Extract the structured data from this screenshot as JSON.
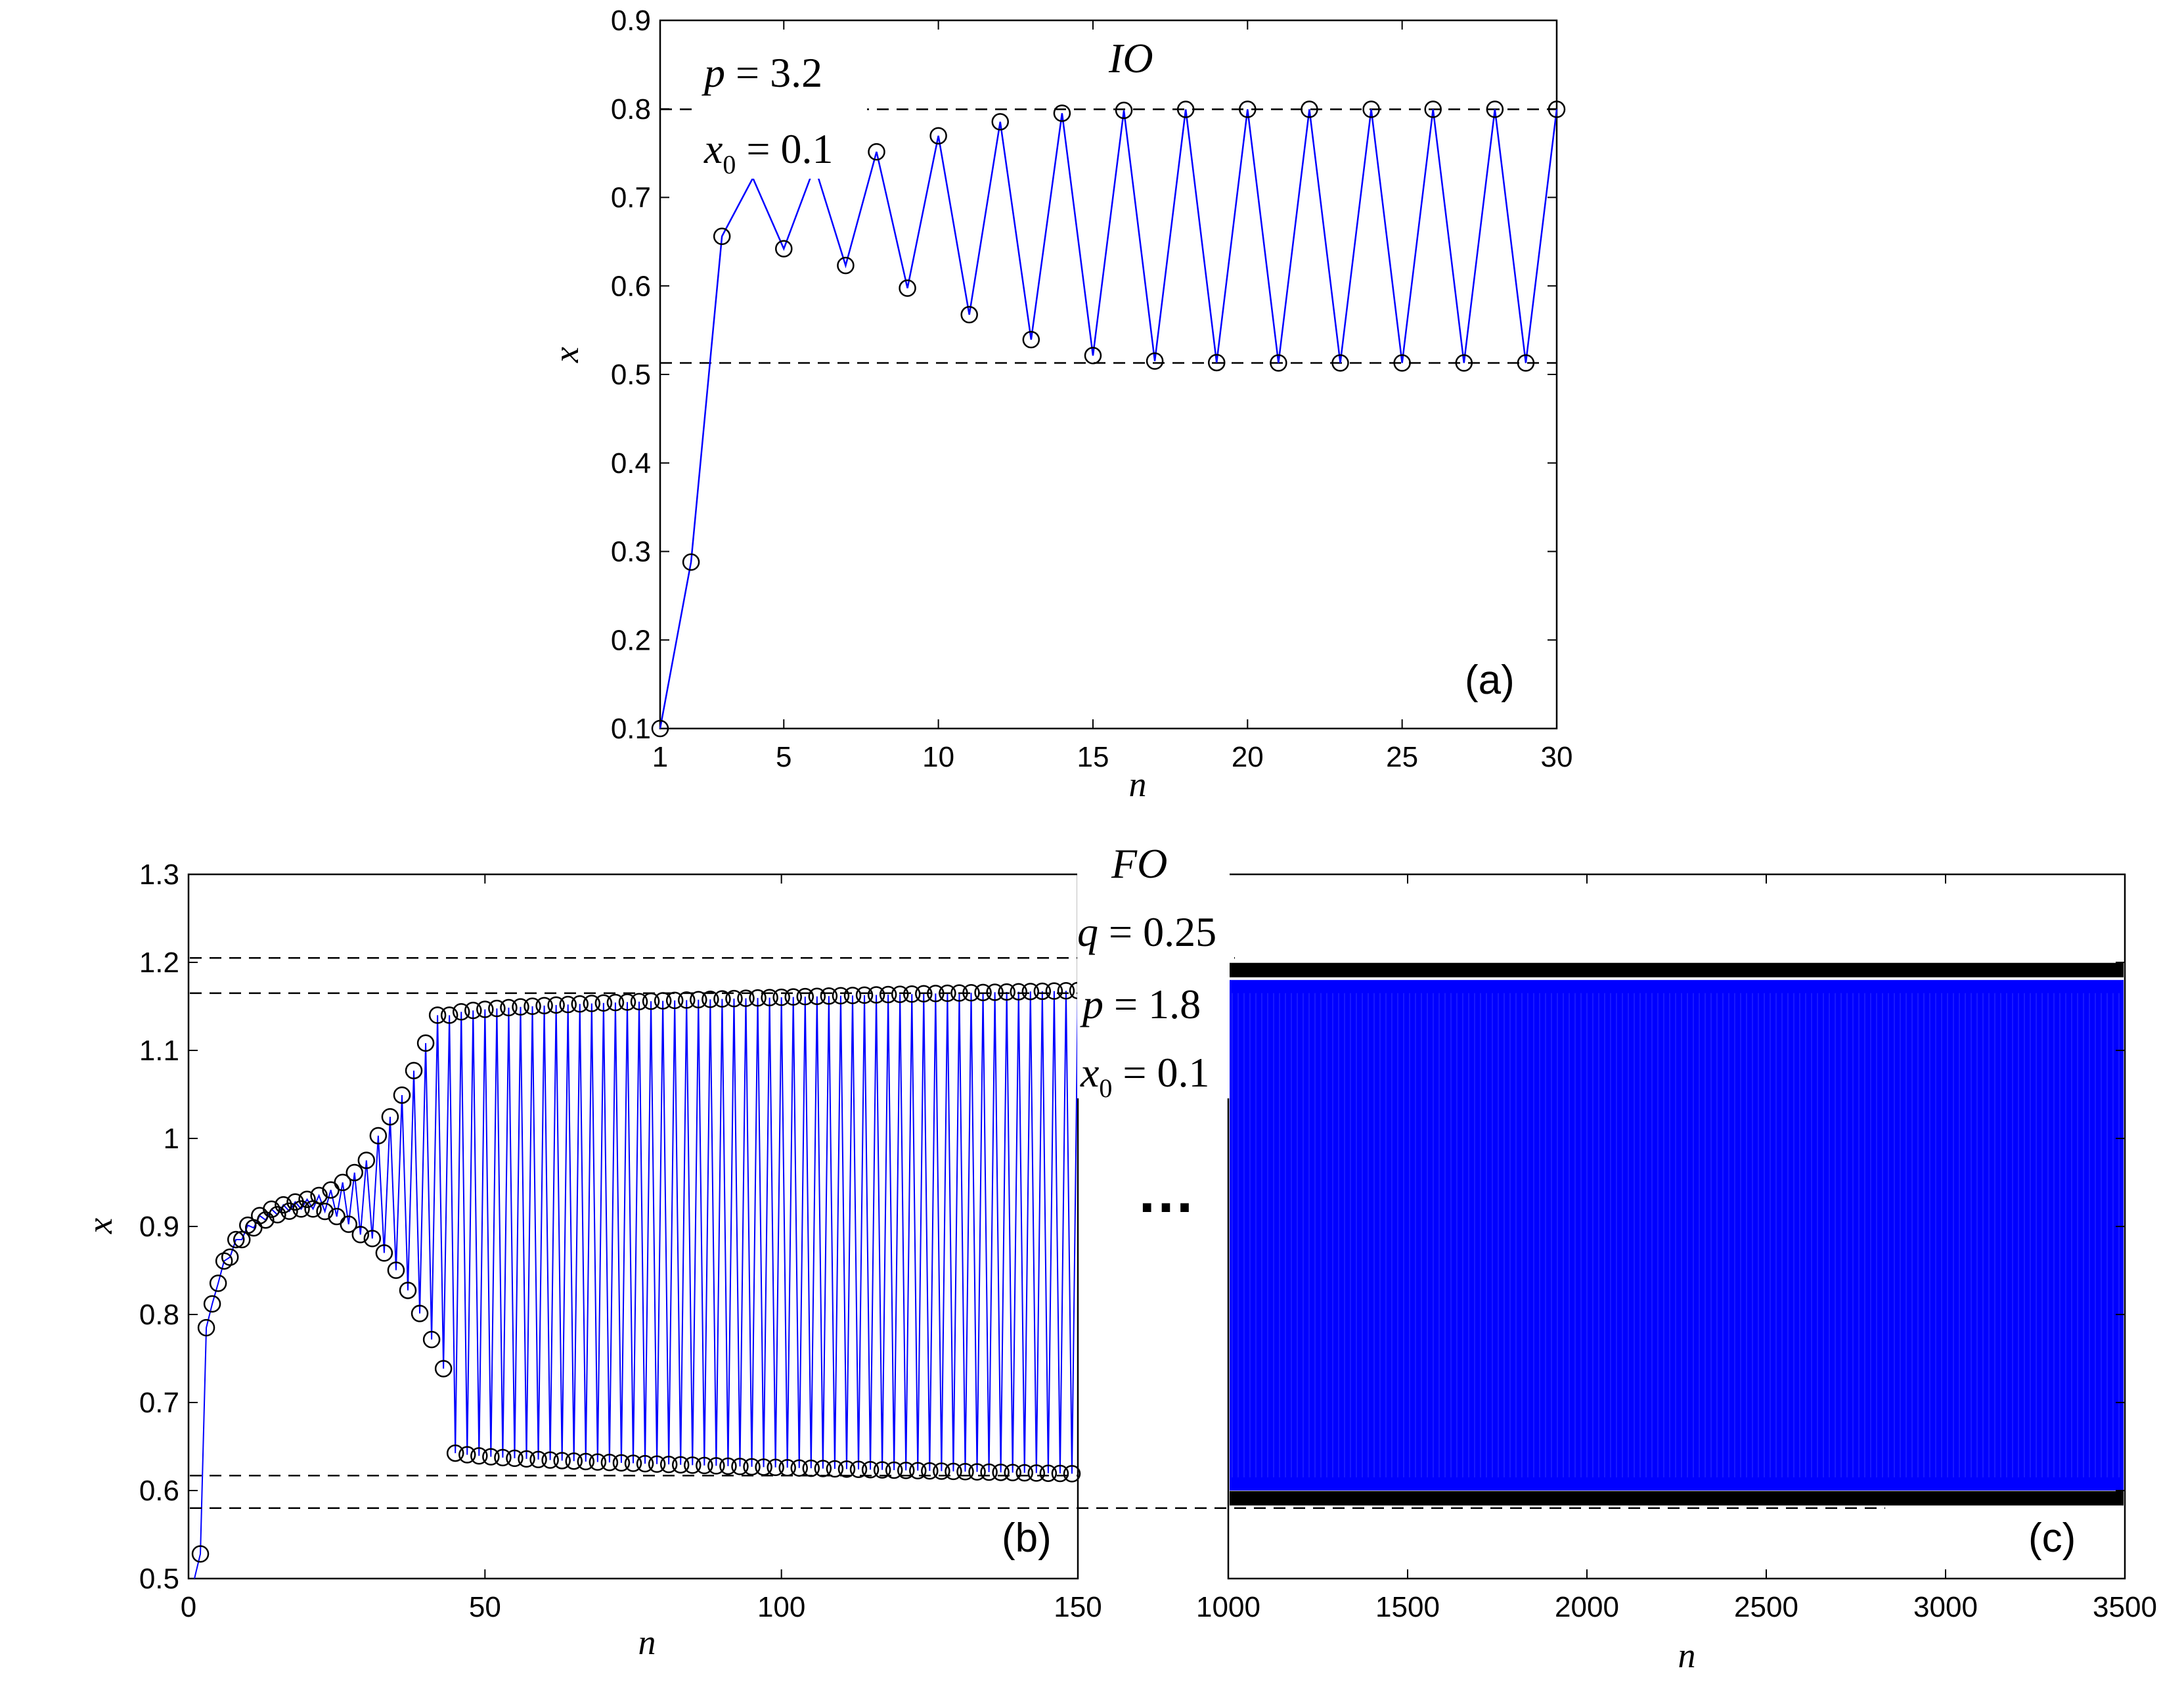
{
  "colors": {
    "series": "#0000ff",
    "marker": "#000000",
    "dashed": "#000000"
  },
  "chart_data": [
    {
      "id": "a",
      "type": "line",
      "panel_label": "(a)",
      "title": "IO",
      "xlabel": "n",
      "ylabel": "x",
      "xlim": [
        1,
        30
      ],
      "ylim": [
        0.1,
        0.9
      ],
      "xticks": [
        1,
        5,
        10,
        15,
        20,
        25,
        30
      ],
      "yticks": [
        0.1,
        0.2,
        0.3,
        0.4,
        0.5,
        0.6,
        0.7,
        0.8,
        0.9
      ],
      "grid": false,
      "annotations": {
        "p_text": "p = 3.2",
        "x0_text": "x0 = 0.1"
      },
      "reference_lines": [
        0.513,
        0.7995
      ],
      "series": [
        {
          "x": [
            1,
            2,
            3,
            4,
            5,
            6,
            7,
            8,
            9,
            10,
            11,
            12,
            13,
            14,
            15,
            16,
            17,
            18,
            19,
            20,
            21,
            22,
            23,
            24,
            25,
            26,
            27,
            28,
            29,
            30
          ],
          "values": [
            0.1,
            0.288,
            0.656,
            0.7219,
            0.642,
            0.7353,
            0.6231,
            0.7515,
            0.5975,
            0.7696,
            0.5675,
            0.7854,
            0.5393,
            0.7951,
            0.5213,
            0.7983,
            0.5151,
            0.7994,
            0.5134,
            0.7995,
            0.513,
            0.7995,
            0.513,
            0.7995,
            0.513,
            0.7995,
            0.513,
            0.7995,
            0.513,
            0.7995
          ]
        }
      ]
    },
    {
      "id": "b",
      "type": "line",
      "panel_label": "(b)",
      "xlabel": "n",
      "ylabel": "x",
      "xlim": [
        0,
        150
      ],
      "ylim": [
        0.5,
        1.3
      ],
      "xticks": [
        0,
        50,
        100,
        150
      ],
      "yticks": [
        0.5,
        0.6,
        0.7,
        0.8,
        0.9,
        1,
        1.1,
        1.2,
        1.3
      ],
      "ytick_labels": [
        "0.5",
        "0.6",
        "0.7",
        "0.8",
        "0.9",
        "1",
        "1.1",
        "1.2",
        "1.3"
      ],
      "grid": false,
      "reference_lines": [
        1.205,
        1.165,
        0.617,
        0.58
      ],
      "series": [
        {
          "generator": "fractional-logistic",
          "x_start": 1,
          "x_end": 150,
          "start_value": 0.44,
          "notes_values": {
            "n2": 0.528,
            "n3": 0.785,
            "n4": 0.812,
            "upper_branch_start": 1.14,
            "upper_branch_end": 1.168,
            "lower_branch_start": 0.645,
            "lower_branch_end": 0.619,
            "transition_n": 44
          }
        }
      ]
    },
    {
      "id": "c",
      "type": "line",
      "panel_label": "(c)",
      "title": "FO",
      "xlabel": "n",
      "xlim": [
        1000,
        3500
      ],
      "ylim": [
        0.5,
        1.3
      ],
      "xticks": [
        1000,
        1500,
        2000,
        2500,
        3000,
        3500
      ],
      "grid": false,
      "annotations": {
        "q_text": "q = 0.25",
        "p_text": "p = 1.8",
        "x0_text": "x0 = 0.1",
        "ellipsis": "…"
      },
      "series": [
        {
          "description_values": {
            "upper_envelope": 1.192,
            "lower_envelope": 0.592,
            "dense_band_top": 1.18,
            "dense_band_bottom": 0.6
          }
        }
      ]
    }
  ]
}
